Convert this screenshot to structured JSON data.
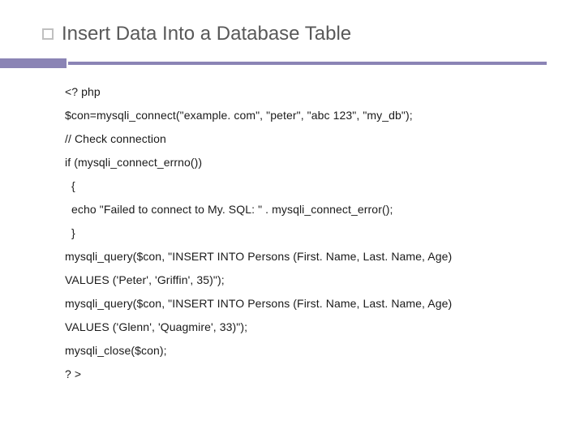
{
  "slide": {
    "title": "Insert Data Into a Database Table",
    "title_color": "#595959",
    "title_fontsize": 24,
    "bullet_border_color": "#c0c0c0",
    "rule_color": "#8b84b5",
    "background_color": "#ffffff",
    "code": {
      "fontsize": 14,
      "text_color": "#1a1a1a",
      "lines": [
        "<? php",
        "$con=mysqli_connect(\"example. com\", \"peter\", \"abc 123\", \"my_db\");",
        "// Check connection",
        "if (mysqli_connect_errno())",
        " {",
        " echo \"Failed to connect to My. SQL: \" . mysqli_connect_error();",
        " }",
        "mysqli_query($con, \"INSERT INTO Persons (First. Name, Last. Name, Age)",
        "VALUES ('Peter', 'Griffin', 35)\");",
        "mysqli_query($con, \"INSERT INTO Persons (First. Name, Last. Name, Age)",
        "VALUES ('Glenn', 'Quagmire', 33)\");",
        "mysqli_close($con);",
        "? >"
      ],
      "indents": [
        0,
        0,
        0,
        0,
        1,
        1,
        1,
        0,
        0,
        0,
        0,
        0,
        0
      ]
    }
  }
}
